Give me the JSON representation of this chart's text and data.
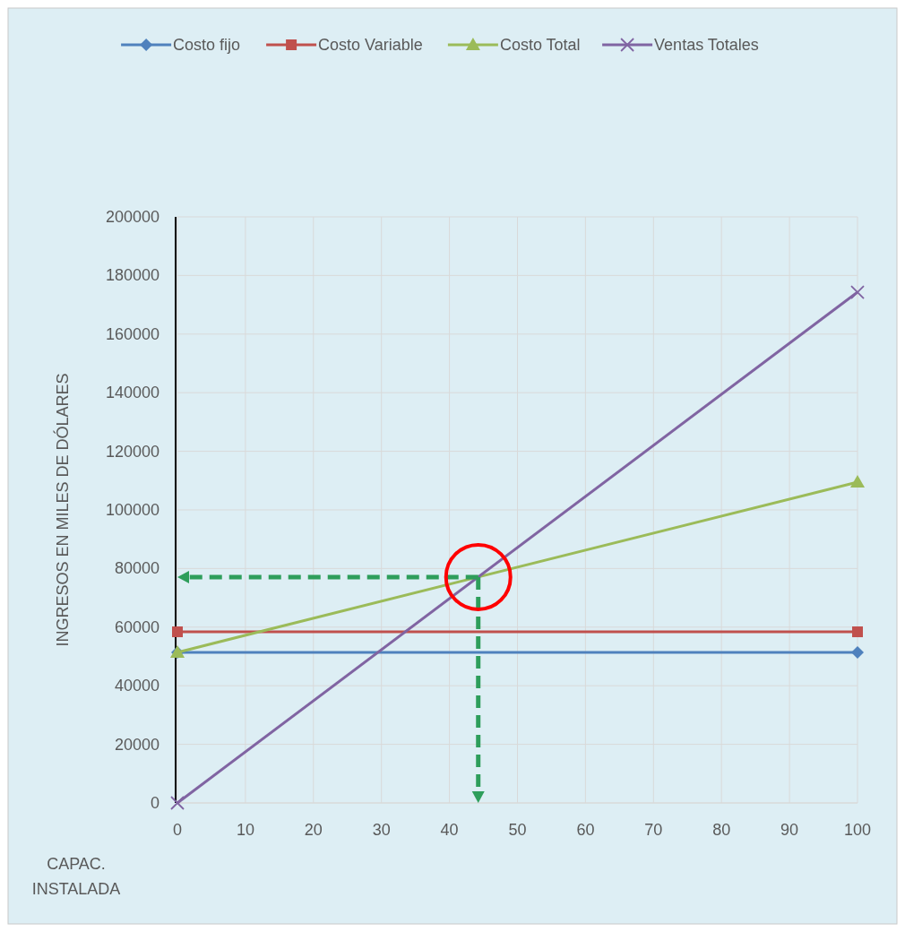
{
  "chart_data": {
    "type": "line",
    "xlabel": "CAPAC. INSTALADA",
    "ylabel": "INGRESOS EN MILES DE DÓLARES",
    "x": [
      0,
      100
    ],
    "xlim": [
      0,
      100
    ],
    "xticks": [
      0,
      10,
      20,
      30,
      40,
      50,
      60,
      70,
      80,
      90,
      100
    ],
    "ylim": [
      0,
      200000
    ],
    "yticks": [
      0,
      20000,
      40000,
      60000,
      80000,
      100000,
      120000,
      140000,
      160000,
      180000,
      200000
    ],
    "grid": true,
    "legend": "top",
    "series": [
      {
        "name": "Costo fijo",
        "color": "#4f81bd",
        "values": [
          51400,
          51400
        ],
        "marker": "diamond"
      },
      {
        "name": "Costo Variable",
        "color": "#c0504d",
        "values": [
          58400,
          58400
        ],
        "marker": "square"
      },
      {
        "name": "Costo Total",
        "color": "#9bbb59",
        "values": [
          51400,
          109500
        ],
        "marker": "triangle"
      },
      {
        "name": "Ventas Totales",
        "color": "#8064a2",
        "values": [
          0,
          174300
        ],
        "marker": "cross"
      }
    ]
  }
}
